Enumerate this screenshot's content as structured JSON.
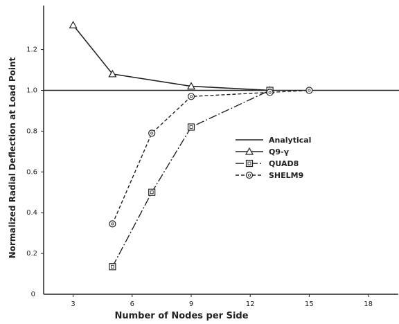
{
  "chart_data": {
    "type": "line",
    "title": "",
    "xlabel": "Number of Nodes per Side",
    "ylabel": "Normalized Radial Deflection at Load Point",
    "xlim": [
      1.5,
      21
    ],
    "ylim": [
      0,
      1.4
    ],
    "xticks": [
      3,
      6,
      9,
      12,
      15,
      18
    ],
    "yticks": [
      0.2,
      0.4,
      0.6,
      0.8,
      1.0,
      1.2
    ],
    "ytick_labels": [
      "0.2",
      "0.4",
      "0.6",
      "0.8",
      "1.0",
      "1.2"
    ],
    "y_zero_label": "0",
    "grid": false,
    "legend_position": "center-right",
    "series": [
      {
        "name": "Analytical",
        "style": "solid",
        "marker": "none",
        "x": [
          1.5,
          21
        ],
        "y": [
          1.0,
          1.0
        ]
      },
      {
        "name": "Q9-γ",
        "style": "solid",
        "marker": "triangle",
        "x": [
          3,
          5,
          9,
          13
        ],
        "y": [
          1.32,
          1.08,
          1.02,
          1.0
        ]
      },
      {
        "name": "QUAD8",
        "style": "dashdot",
        "marker": "square",
        "x": [
          5,
          7,
          9,
          13
        ],
        "y": [
          0.135,
          0.5,
          0.82,
          1.0
        ]
      },
      {
        "name": "SHELM9",
        "style": "dashed",
        "marker": "circle",
        "x": [
          5,
          7,
          9,
          13,
          15
        ],
        "y": [
          0.345,
          0.79,
          0.97,
          0.99,
          1.0
        ]
      }
    ]
  }
}
